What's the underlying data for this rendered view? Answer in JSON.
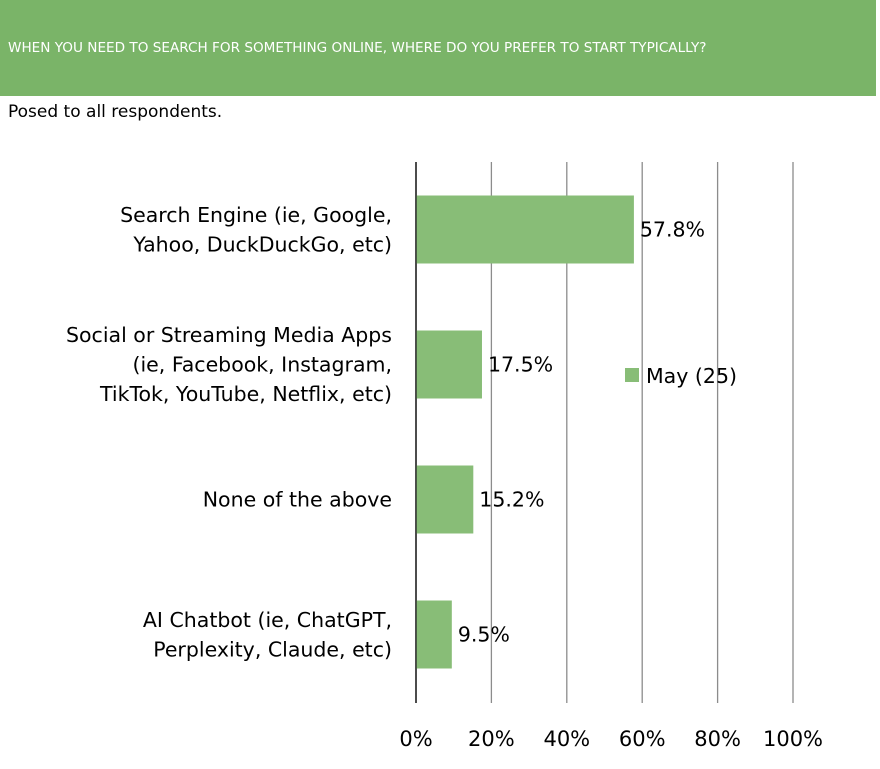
{
  "header": {
    "title": "WHEN YOU NEED TO SEARCH FOR SOMETHING ONLINE, WHERE DO YOU PREFER TO START TYPICALLY?",
    "bg_color": "#7ab468"
  },
  "subtitle": "Posed to all respondents.",
  "chart_data": {
    "type": "bar",
    "orientation": "horizontal",
    "categories": [
      [
        "Search Engine (ie, Google,",
        "Yahoo, DuckDuckGo, etc)"
      ],
      [
        "Social or Streaming Media Apps",
        "(ie, Facebook, Instagram,",
        "TikTok, YouTube, Netflix, etc)"
      ],
      [
        "None of the above"
      ],
      [
        "AI Chatbot (ie, ChatGPT,",
        "Perplexity, Claude, etc)"
      ]
    ],
    "series": [
      {
        "name": "May (25)",
        "values": [
          57.8,
          17.5,
          15.2,
          9.5
        ],
        "color": "#88bd77"
      }
    ],
    "data_labels": [
      "57.8%",
      "17.5%",
      "15.2%",
      "9.5%"
    ],
    "xlim": [
      0,
      100
    ],
    "xticks": [
      0,
      20,
      40,
      60,
      80,
      100
    ],
    "xtick_labels": [
      "0%",
      "20%",
      "40%",
      "60%",
      "80%",
      "100%"
    ],
    "grid": true,
    "legend_position": "right"
  }
}
